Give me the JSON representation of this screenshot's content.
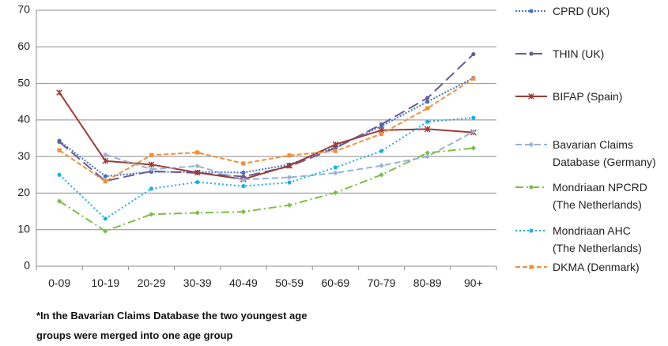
{
  "chart_data": {
    "type": "line",
    "title": "",
    "xlabel": "",
    "ylabel": "",
    "ylim": [
      0,
      70
    ],
    "yticks": [
      0,
      10,
      20,
      30,
      40,
      50,
      60,
      70
    ],
    "grid": true,
    "legend_position": "right",
    "categories": [
      "0-09",
      "10-19",
      "20-29",
      "30-39",
      "40-49",
      "50-59",
      "60-69",
      "70-79",
      "80-89",
      "90+"
    ],
    "series": [
      {
        "name": "CPRD (UK)",
        "color": "#4472C4",
        "dash": "2,2",
        "marker": "circle",
        "values": [
          34.3,
          24.6,
          25.8,
          25.8,
          25.6,
          27.8,
          32.6,
          38.3,
          45.0,
          51.5
        ]
      },
      {
        "name": "THIN (UK)",
        "color": "#6B5B95",
        "dash": "14,6",
        "marker": "circle",
        "values": [
          34.0,
          23.3,
          26.0,
          25.5,
          24.5,
          27.3,
          32.3,
          38.8,
          46.0,
          58.0
        ]
      },
      {
        "name": "BIFAP (Spain)",
        "color": "#9E3B37",
        "dash": "",
        "marker": "star",
        "values": [
          47.5,
          28.8,
          27.8,
          25.6,
          23.8,
          27.5,
          33.3,
          37.2,
          37.5,
          36.6
        ]
      },
      {
        "name": "Bavarian Claims Database (Germany)",
        "color": "#95B3D7",
        "dash": "8,4",
        "marker": "diamond",
        "values": [
          null,
          30.5,
          26.5,
          27.4,
          23.7,
          24.3,
          25.5,
          27.5,
          30.0,
          36.8
        ]
      },
      {
        "name": "Mondriaan NPCRD (The Netherlands)",
        "color": "#7AC143",
        "dash": "10,4,2,4",
        "marker": "diamond",
        "values": [
          17.8,
          9.6,
          14.2,
          14.6,
          14.9,
          16.7,
          20.1,
          25.0,
          31.0,
          32.3
        ]
      },
      {
        "name": "Mondriaan AHC (The Netherlands)",
        "color": "#17B1E6",
        "dash": "2,3",
        "marker": "circle",
        "values": [
          25.0,
          13.0,
          21.2,
          23.0,
          21.9,
          22.9,
          27.0,
          31.5,
          39.5,
          40.6
        ]
      },
      {
        "name": "DKMA (Denmark)",
        "color": "#F0913A",
        "dash": "6,3",
        "marker": "square",
        "values": [
          31.7,
          23.2,
          30.4,
          31.1,
          28.1,
          30.3,
          31.5,
          36.2,
          43.2,
          51.3
        ]
      }
    ],
    "legend_lines": [
      [
        "CPRD (UK)"
      ],
      [
        "THIN (UK)"
      ],
      [
        "BIFAP (Spain)"
      ],
      [
        "Bavarian Claims",
        "Database (Germany)"
      ],
      [
        "Mondriaan NPCRD",
        "(The Netherlands)"
      ],
      [
        "Mondriaan AHC",
        "(The Netherlands)"
      ],
      [
        "DKMA (Denmark)"
      ]
    ]
  },
  "footnote": {
    "line1": "*In the Bavarian Claims Database the two youngest age",
    "line2": "groups were merged into one age group"
  }
}
